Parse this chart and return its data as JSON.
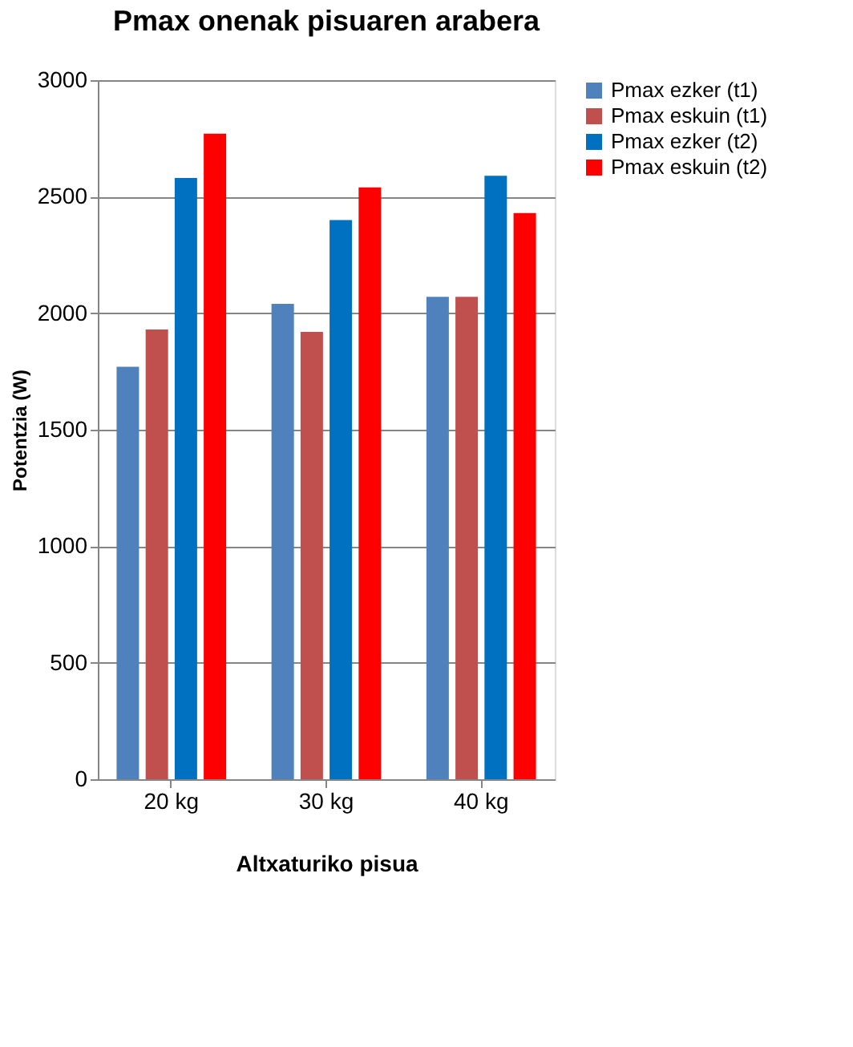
{
  "chart_data": {
    "type": "bar",
    "title": "Pmax onenak pisuaren arabera",
    "xlabel": "Altxaturiko pisua",
    "ylabel": "Potentzia (W)",
    "categories": [
      "20 kg",
      "30 kg",
      "40 kg"
    ],
    "series": [
      {
        "name": "Pmax ezker (t1)",
        "color": "#4f81bd",
        "values": [
          1770,
          2040,
          2070
        ]
      },
      {
        "name": "Pmax eskuin (t1)",
        "color": "#c0504d",
        "values": [
          1930,
          1920,
          2070
        ]
      },
      {
        "name": "Pmax ezker (t2)",
        "color": "#0070c0",
        "values": [
          2580,
          2400,
          2590
        ]
      },
      {
        "name": "Pmax eskuin (t2)",
        "color": "#ff0000",
        "values": [
          2770,
          2540,
          2430
        ]
      }
    ],
    "ylim": [
      0,
      3000
    ],
    "yticks": [
      0,
      500,
      1000,
      1500,
      2000,
      2500,
      3000
    ],
    "grid": "y",
    "legend": "right"
  }
}
